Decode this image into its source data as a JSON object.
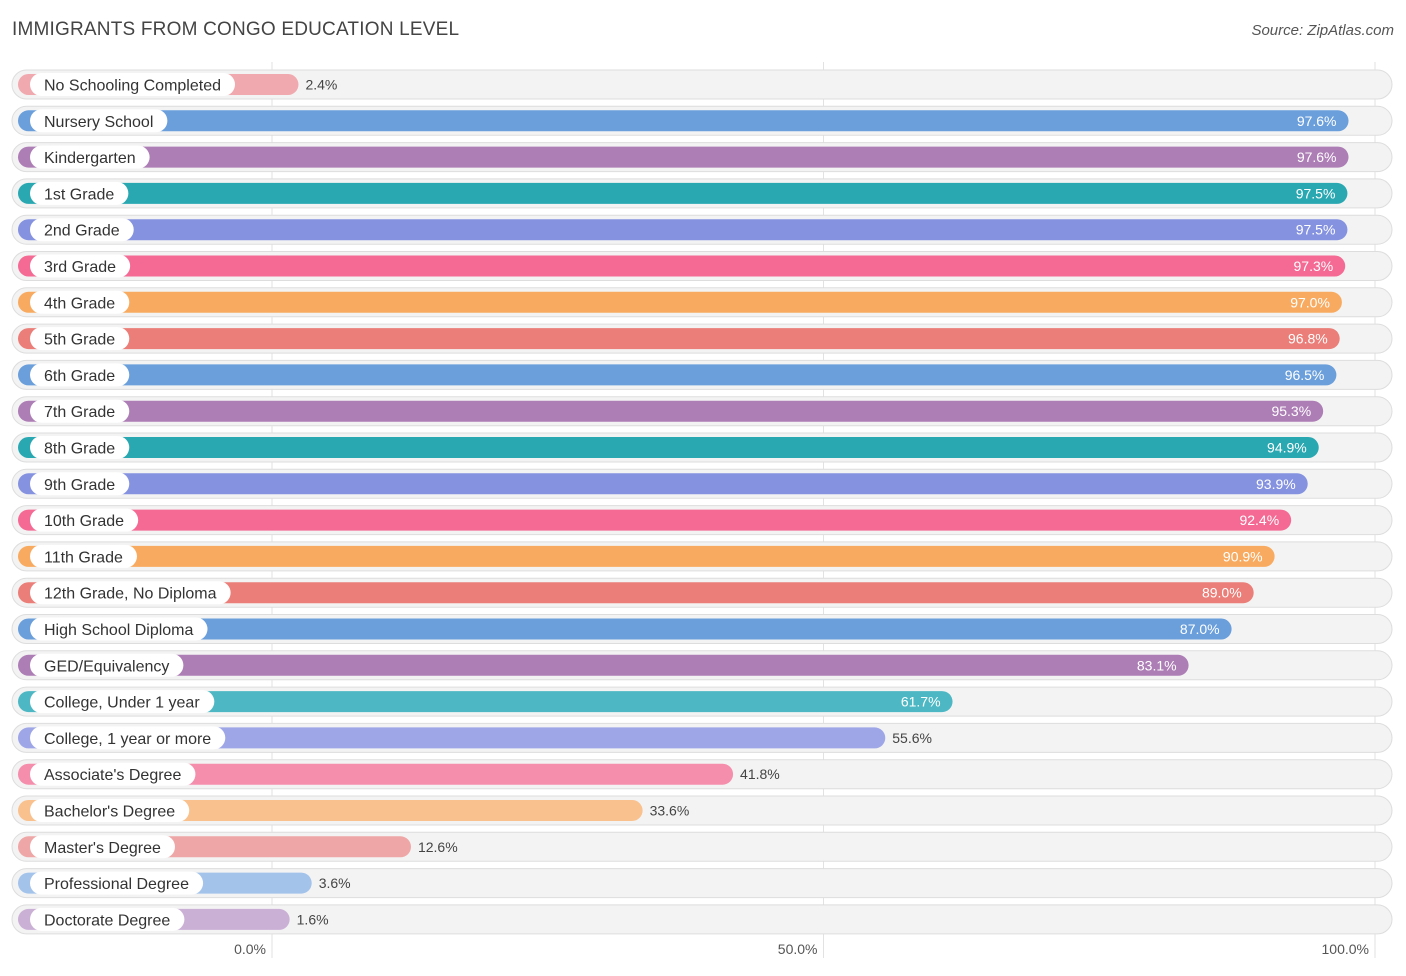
{
  "title": "IMMIGRANTS FROM CONGO EDUCATION LEVEL",
  "source": "Source: ZipAtlas.com",
  "chart_data": {
    "type": "bar",
    "orientation": "horizontal",
    "categories": [
      "No Schooling Completed",
      "Nursery School",
      "Kindergarten",
      "1st Grade",
      "2nd Grade",
      "3rd Grade",
      "4th Grade",
      "5th Grade",
      "6th Grade",
      "7th Grade",
      "8th Grade",
      "9th Grade",
      "10th Grade",
      "11th Grade",
      "12th Grade, No Diploma",
      "High School Diploma",
      "GED/Equivalency",
      "College, Under 1 year",
      "College, 1 year or more",
      "Associate's Degree",
      "Bachelor's Degree",
      "Master's Degree",
      "Professional Degree",
      "Doctorate Degree"
    ],
    "values": [
      2.4,
      97.6,
      97.6,
      97.5,
      97.5,
      97.3,
      97.0,
      96.8,
      96.5,
      95.3,
      94.9,
      93.9,
      92.4,
      90.9,
      89.0,
      87.0,
      83.1,
      61.7,
      55.6,
      41.8,
      33.6,
      12.6,
      3.6,
      1.6
    ],
    "value_labels": [
      "2.4%",
      "97.6%",
      "97.6%",
      "97.5%",
      "97.5%",
      "97.3%",
      "97.0%",
      "96.8%",
      "96.5%",
      "95.3%",
      "94.9%",
      "93.9%",
      "92.4%",
      "90.9%",
      "89.0%",
      "87.0%",
      "83.1%",
      "61.7%",
      "55.6%",
      "41.8%",
      "33.6%",
      "12.6%",
      "3.6%",
      "1.6%"
    ],
    "colors": [
      "#f0a9ae",
      "#6a9fdc",
      "#ad7db5",
      "#2aa8b2",
      "#8592e0",
      "#f46a94",
      "#f8ab60",
      "#eb7e78",
      "#6a9fdc",
      "#ad7db5",
      "#2aa8b2",
      "#8592e0",
      "#f46a94",
      "#f8ab60",
      "#eb7e78",
      "#6a9fdc",
      "#ad7db5",
      "#4db8c4",
      "#9ea6e8",
      "#f48eac",
      "#f9c18e",
      "#efa6a6",
      "#a4c3eb",
      "#cbb0d6"
    ],
    "x_ticks": [
      "0.0%",
      "50.0%",
      "100.0%"
    ],
    "xlim": [
      0,
      100
    ],
    "grid": true
  }
}
